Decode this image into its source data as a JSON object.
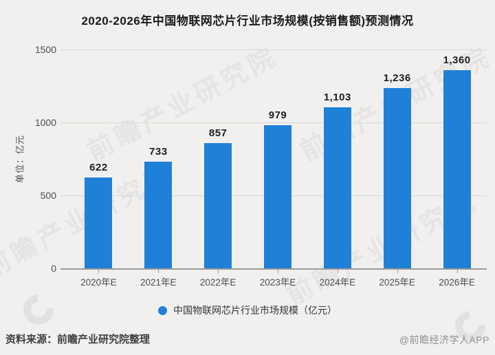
{
  "chart_data": {
    "type": "bar",
    "title": "2020-2026年中国物联网芯片行业市场规模(按销售额)预测情况",
    "categories": [
      "2020年E",
      "2021年E",
      "2022年E",
      "2023年E",
      "2024年E",
      "2025年E",
      "2026年E"
    ],
    "values": [
      622,
      733,
      857,
      979,
      1103,
      1236,
      1360
    ],
    "value_labels": [
      "622",
      "733",
      "857",
      "979",
      "1,103",
      "1,236",
      "1,360"
    ],
    "series_name": "中国物联网芯片行业市场规模（亿元）",
    "xlabel": "",
    "ylabel": "单位：亿元",
    "ylim": [
      0,
      1500
    ],
    "yticks": [
      0,
      500,
      1000,
      1500
    ],
    "grid": true,
    "legend_position": "bottom",
    "bar_color": "#1f80d8"
  },
  "legend": {
    "label": "中国物联网芯片行业市场规模（亿元）"
  },
  "footer": {
    "source": "资料来源：前瞻产业研究院整理",
    "credit": "@前瞻经济学人APP"
  },
  "watermark": {
    "text": "前瞻产业研究院"
  },
  "colors": {
    "background": "#f1f0ee",
    "bar": "#1f80d8",
    "grid": "#d9d9d9",
    "axis": "#9a9a9a",
    "title_text": "#1a1a1a",
    "tick_text": "#4d4d4d",
    "value_text": "#1f1f1f",
    "source_text": "#3f3f3f",
    "credit_text": "#8f8f8f"
  }
}
